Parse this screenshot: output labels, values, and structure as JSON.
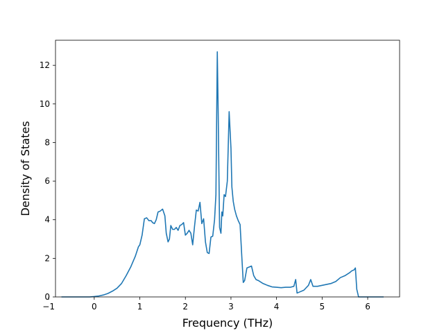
{
  "chart_data": {
    "type": "line",
    "title": "",
    "xlabel": "Frequency (THz)",
    "ylabel": "Density of States",
    "xlim": [
      -0.85,
      6.7
    ],
    "ylim": [
      0,
      13.3
    ],
    "x_ticks": [
      -1,
      0,
      1,
      2,
      3,
      4,
      5,
      6
    ],
    "y_ticks": [
      0,
      2,
      4,
      6,
      8,
      10,
      12
    ],
    "grid": false,
    "legend": "none",
    "series": [
      {
        "color": "#1f77b4",
        "x": [
          -0.72,
          -0.5,
          -0.3,
          -0.1,
          0.0,
          0.1,
          0.2,
          0.3,
          0.4,
          0.5,
          0.6,
          0.7,
          0.8,
          0.9,
          0.97,
          1.0,
          1.05,
          1.1,
          1.15,
          1.2,
          1.25,
          1.28,
          1.32,
          1.36,
          1.4,
          1.45,
          1.5,
          1.55,
          1.58,
          1.62,
          1.65,
          1.68,
          1.72,
          1.76,
          1.8,
          1.84,
          1.88,
          1.92,
          1.96,
          2.0,
          2.04,
          2.08,
          2.12,
          2.16,
          2.2,
          2.24,
          2.28,
          2.32,
          2.36,
          2.4,
          2.44,
          2.48,
          2.52,
          2.56,
          2.6,
          2.64,
          2.67,
          2.7,
          2.72,
          2.75,
          2.78,
          2.8,
          2.82,
          2.85,
          2.88,
          2.92,
          2.96,
          3.0,
          3.02,
          3.05,
          3.08,
          3.12,
          3.16,
          3.2,
          3.24,
          3.27,
          3.3,
          3.35,
          3.4,
          3.45,
          3.5,
          3.55,
          3.6,
          3.7,
          3.8,
          3.9,
          4.0,
          4.1,
          4.2,
          4.3,
          4.38,
          4.42,
          4.45,
          4.5,
          4.6,
          4.7,
          4.75,
          4.8,
          4.9,
          5.0,
          5.1,
          5.2,
          5.3,
          5.4,
          5.5,
          5.6,
          5.65,
          5.7,
          5.73,
          5.76,
          5.8,
          5.9,
          6.0,
          6.2,
          6.35
        ],
        "y": [
          0.0,
          0.0,
          0.0,
          0.0,
          0.02,
          0.05,
          0.1,
          0.18,
          0.3,
          0.45,
          0.7,
          1.1,
          1.55,
          2.1,
          2.6,
          2.7,
          3.2,
          4.05,
          4.1,
          3.95,
          3.95,
          3.85,
          3.8,
          4.0,
          4.4,
          4.45,
          4.55,
          4.2,
          3.3,
          2.85,
          3.0,
          3.7,
          3.5,
          3.5,
          3.6,
          3.45,
          3.7,
          3.75,
          3.85,
          3.2,
          3.3,
          3.45,
          3.3,
          2.7,
          3.65,
          4.5,
          4.45,
          4.9,
          3.8,
          4.05,
          2.85,
          2.3,
          2.25,
          3.1,
          3.15,
          4.0,
          5.3,
          12.7,
          9.5,
          3.6,
          3.3,
          4.4,
          4.2,
          5.3,
          5.2,
          6.0,
          9.6,
          7.7,
          5.7,
          4.95,
          4.55,
          4.2,
          3.95,
          3.75,
          2.0,
          0.75,
          0.85,
          1.5,
          1.55,
          1.6,
          1.1,
          0.9,
          0.85,
          0.7,
          0.6,
          0.52,
          0.5,
          0.48,
          0.5,
          0.5,
          0.55,
          0.9,
          0.2,
          0.25,
          0.35,
          0.6,
          0.9,
          0.55,
          0.55,
          0.6,
          0.65,
          0.7,
          0.8,
          1.0,
          1.1,
          1.25,
          1.35,
          1.4,
          1.5,
          0.4,
          0.0,
          0.0,
          0.0,
          0.0,
          0.0
        ]
      }
    ]
  }
}
